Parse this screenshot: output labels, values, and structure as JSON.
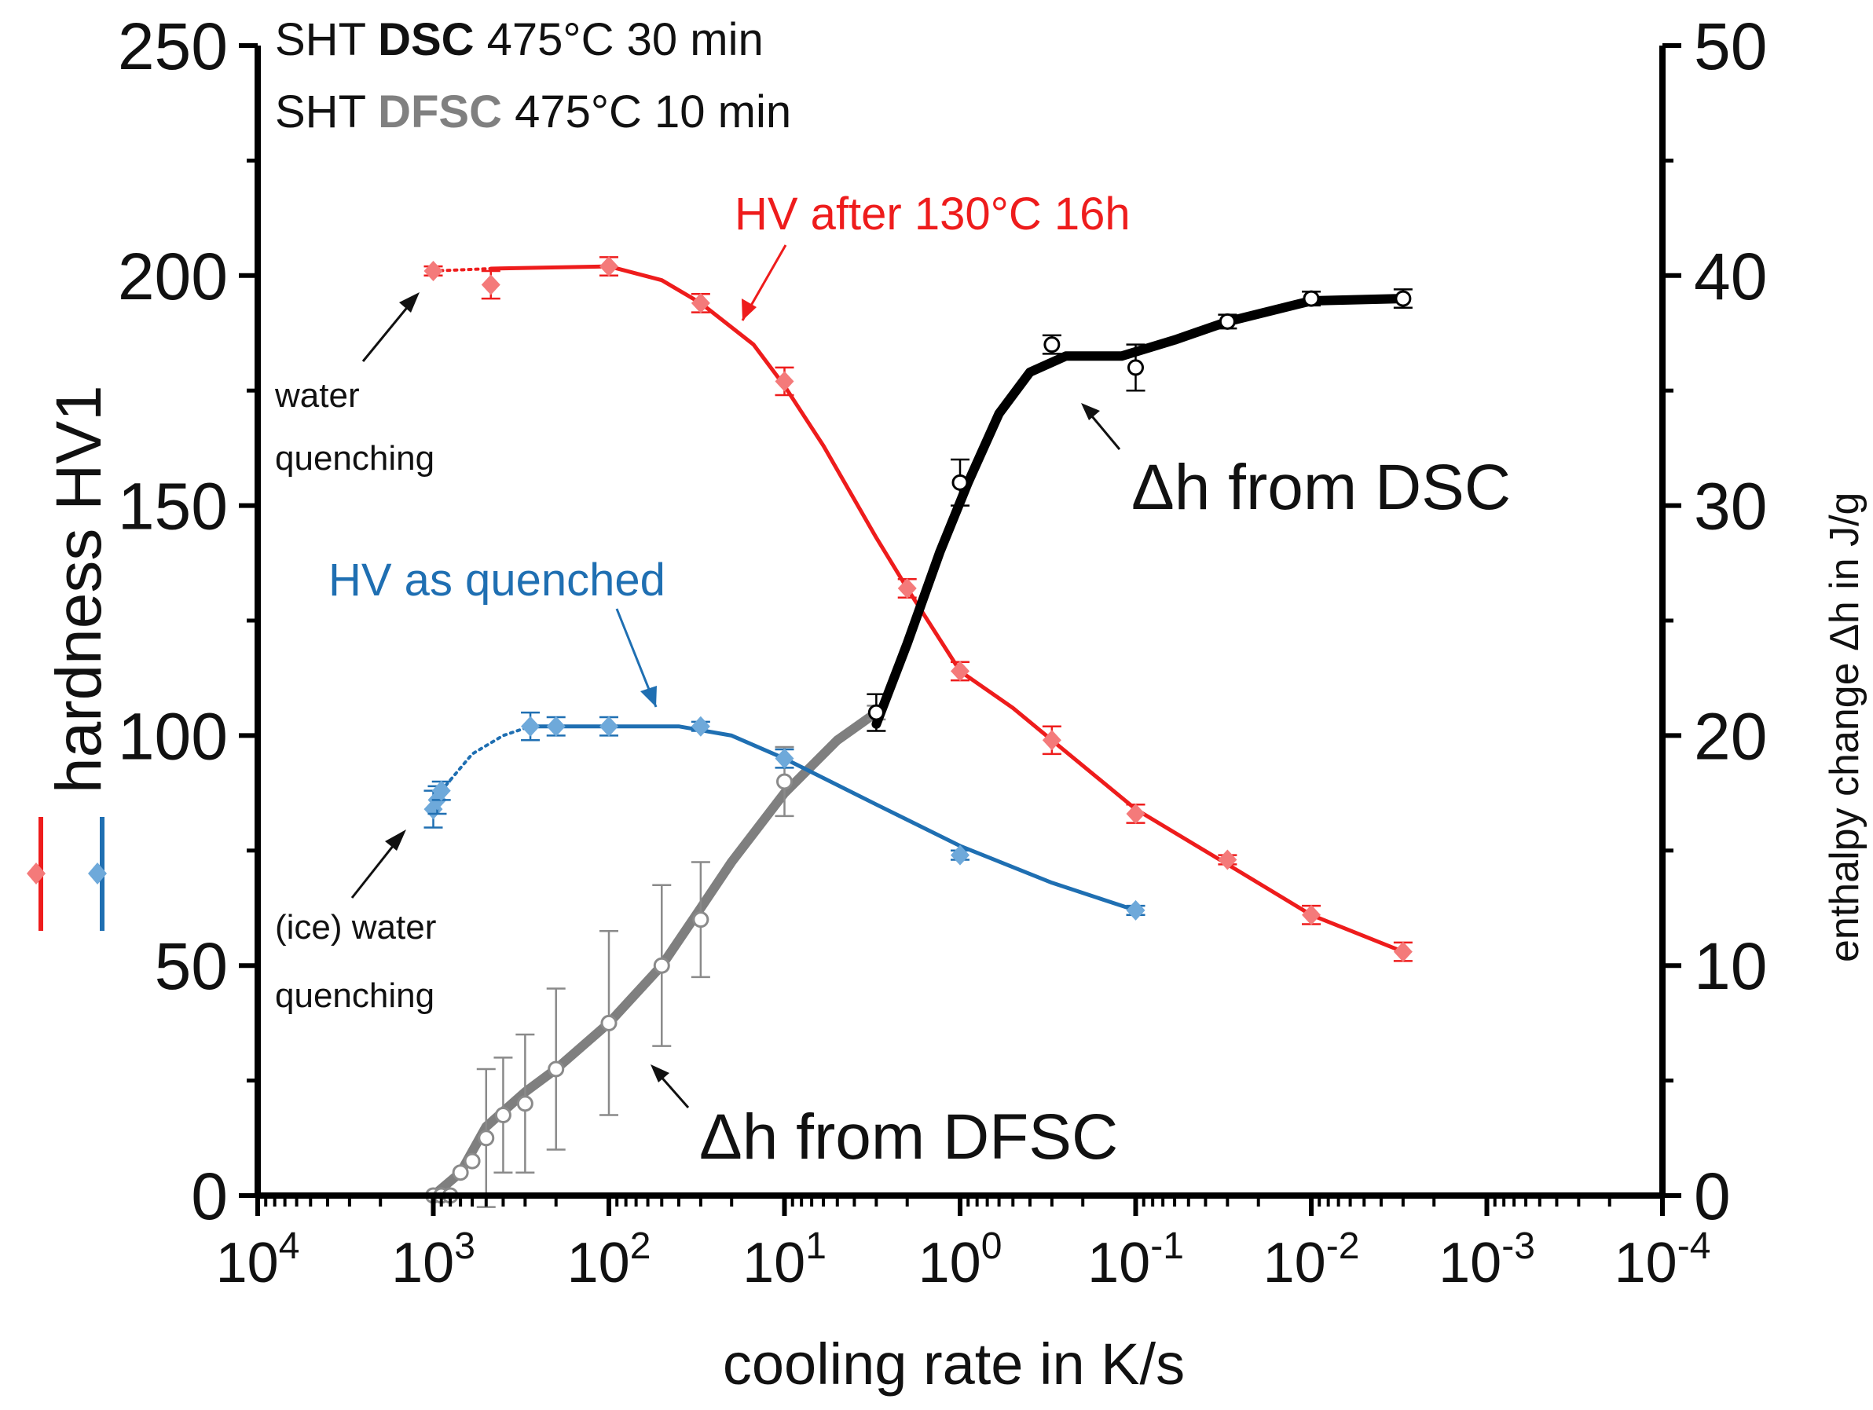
{
  "chart_data": {
    "type": "scatter",
    "info": {
      "line1": {
        "prefix": "SHT ",
        "method": "DSC",
        "suffix": " 475°C 30 min"
      },
      "line2": {
        "prefix": "SHT ",
        "method": "DFSC",
        "suffix": " 475°C 10 min"
      }
    },
    "x_axis": {
      "label": "cooling rate in K/s",
      "scale": "log",
      "reversed": true,
      "range_log10": [
        4,
        -4
      ],
      "ticks": [
        {
          "base": "10",
          "exp": "4"
        },
        {
          "base": "10",
          "exp": "3"
        },
        {
          "base": "10",
          "exp": "2"
        },
        {
          "base": "10",
          "exp": "1"
        },
        {
          "base": "10",
          "exp": "0"
        },
        {
          "base": "10",
          "exp": "-1"
        },
        {
          "base": "10",
          "exp": "-2"
        },
        {
          "base": "10",
          "exp": "-3"
        },
        {
          "base": "10",
          "exp": "-4"
        }
      ]
    },
    "y_left": {
      "label": "hardness HV1",
      "range": [
        0,
        250
      ],
      "ticks": [
        "0",
        "50",
        "100",
        "150",
        "200",
        "250"
      ]
    },
    "y_right": {
      "label": "enthalpy change Δh in J/g",
      "range": [
        0,
        50
      ],
      "ticks": [
        "0",
        "10",
        "20",
        "30",
        "40",
        "50"
      ]
    },
    "annotations": {
      "hv_after": "HV after 130°C 16h",
      "hv_quenched": "HV as quenched",
      "dh_dsc": "Δh from DSC",
      "dh_dfsc": "Δh from DFSC",
      "water_1": "water",
      "water_2": "quenching",
      "ice_1": "(ice) water",
      "ice_2": "quenching"
    },
    "series": [
      {
        "name": "HV after 130°C 16h",
        "axis": "left",
        "color": "#ee1c1c",
        "light_color": "#f47a7a",
        "points": [
          {
            "x": 1000,
            "y": 201,
            "err": 1
          },
          {
            "x": 470,
            "y": 198,
            "err": 3
          },
          {
            "x": 100,
            "y": 202,
            "err": 2
          },
          {
            "x": 30,
            "y": 194,
            "err": 2
          },
          {
            "x": 10,
            "y": 177,
            "err": 3
          },
          {
            "x": 2,
            "y": 132,
            "err": 2
          },
          {
            "x": 1,
            "y": 114,
            "err": 2
          },
          {
            "x": 0.3,
            "y": 99,
            "err": 3
          },
          {
            "x": 0.1,
            "y": 83,
            "err": 2
          },
          {
            "x": 0.03,
            "y": 73,
            "err": 1
          },
          {
            "x": 0.01,
            "y": 61,
            "err": 2
          },
          {
            "x": 0.003,
            "y": 53,
            "err": 2
          }
        ],
        "fit_dotted": [
          {
            "x": 1000,
            "y": 201
          },
          {
            "x": 470,
            "y": 201.5
          }
        ],
        "fit": [
          {
            "x": 470,
            "y": 201.5
          },
          {
            "x": 100,
            "y": 202
          },
          {
            "x": 50,
            "y": 199
          },
          {
            "x": 30,
            "y": 194
          },
          {
            "x": 15,
            "y": 185
          },
          {
            "x": 10,
            "y": 176
          },
          {
            "x": 6,
            "y": 163
          },
          {
            "x": 3,
            "y": 143
          },
          {
            "x": 2,
            "y": 132
          },
          {
            "x": 1,
            "y": 114
          },
          {
            "x": 0.5,
            "y": 106
          },
          {
            "x": 0.3,
            "y": 99
          },
          {
            "x": 0.1,
            "y": 84
          },
          {
            "x": 0.03,
            "y": 72
          },
          {
            "x": 0.01,
            "y": 61
          },
          {
            "x": 0.003,
            "y": 53
          }
        ]
      },
      {
        "name": "HV as quenched",
        "axis": "left",
        "color": "#1f6fb2",
        "light_color": "#6ea9da",
        "points": [
          {
            "x": 1000,
            "y": 84,
            "err": 4
          },
          {
            "x": 950,
            "y": 86,
            "err": 3
          },
          {
            "x": 900,
            "y": 88,
            "err": 2
          },
          {
            "x": 280,
            "y": 102,
            "err": 3
          },
          {
            "x": 200,
            "y": 102,
            "err": 2
          },
          {
            "x": 100,
            "y": 102,
            "err": 2
          },
          {
            "x": 30,
            "y": 102,
            "err": 1
          },
          {
            "x": 10,
            "y": 95,
            "err": 2
          },
          {
            "x": 1,
            "y": 74,
            "err": 1
          },
          {
            "x": 0.1,
            "y": 62,
            "err": 1
          }
        ],
        "fit_dotted": [
          {
            "x": 900,
            "y": 88
          },
          {
            "x": 600,
            "y": 96
          },
          {
            "x": 400,
            "y": 100
          },
          {
            "x": 280,
            "y": 102
          }
        ],
        "fit": [
          {
            "x": 280,
            "y": 102
          },
          {
            "x": 100,
            "y": 102
          },
          {
            "x": 40,
            "y": 102
          },
          {
            "x": 20,
            "y": 100
          },
          {
            "x": 10,
            "y": 95
          },
          {
            "x": 3,
            "y": 85
          },
          {
            "x": 1,
            "y": 76
          },
          {
            "x": 0.3,
            "y": 68
          },
          {
            "x": 0.1,
            "y": 62
          }
        ]
      },
      {
        "name": "Δh from DSC",
        "axis": "right",
        "color": "#000000",
        "points": [
          {
            "x": 3,
            "y": 21,
            "err": 0.8
          },
          {
            "x": 1,
            "y": 31,
            "err": 1
          },
          {
            "x": 0.3,
            "y": 37,
            "err": 0.4
          },
          {
            "x": 0.1,
            "y": 36,
            "err": 1
          },
          {
            "x": 0.03,
            "y": 38,
            "err": 0.3
          },
          {
            "x": 0.01,
            "y": 39,
            "err": 0.3
          },
          {
            "x": 0.003,
            "y": 39,
            "err": 0.4
          }
        ],
        "fit": [
          {
            "x": 3,
            "y": 20.5
          },
          {
            "x": 2,
            "y": 24
          },
          {
            "x": 1.3,
            "y": 28
          },
          {
            "x": 0.9,
            "y": 31
          },
          {
            "x": 0.6,
            "y": 34
          },
          {
            "x": 0.4,
            "y": 35.8
          },
          {
            "x": 0.25,
            "y": 36.5
          },
          {
            "x": 0.12,
            "y": 36.5
          },
          {
            "x": 0.06,
            "y": 37.2
          },
          {
            "x": 0.03,
            "y": 38
          },
          {
            "x": 0.01,
            "y": 38.9
          },
          {
            "x": 0.003,
            "y": 39
          }
        ]
      },
      {
        "name": "Δh from DFSC",
        "axis": "right",
        "color": "#7f7f7f",
        "points": [
          {
            "x": 1000,
            "y": 0,
            "err": 0
          },
          {
            "x": 900,
            "y": 0,
            "err": 0
          },
          {
            "x": 800,
            "y": 0,
            "err": 0
          },
          {
            "x": 700,
            "y": 1,
            "err": 0
          },
          {
            "x": 600,
            "y": 1.5,
            "err": 0
          },
          {
            "x": 500,
            "y": 2.5,
            "err": 3
          },
          {
            "x": 400,
            "y": 3.5,
            "err": 2.5
          },
          {
            "x": 300,
            "y": 4,
            "err": 3
          },
          {
            "x": 200,
            "y": 5.5,
            "err": 3.5
          },
          {
            "x": 100,
            "y": 7.5,
            "err": 4
          },
          {
            "x": 50,
            "y": 10,
            "err": 3.5
          },
          {
            "x": 30,
            "y": 12,
            "err": 2.5
          },
          {
            "x": 10,
            "y": 18,
            "err": 1.5
          },
          {
            "x": 3,
            "y": 21,
            "err": 0.3
          }
        ],
        "fit": [
          {
            "x": 1000,
            "y": 0
          },
          {
            "x": 700,
            "y": 1
          },
          {
            "x": 500,
            "y": 3
          },
          {
            "x": 300,
            "y": 4.5
          },
          {
            "x": 200,
            "y": 5.5
          },
          {
            "x": 100,
            "y": 7.5
          },
          {
            "x": 50,
            "y": 10
          },
          {
            "x": 30,
            "y": 12.5
          },
          {
            "x": 20,
            "y": 14.5
          },
          {
            "x": 10,
            "y": 17.5
          },
          {
            "x": 5,
            "y": 19.8
          },
          {
            "x": 3,
            "y": 21
          }
        ]
      }
    ]
  }
}
